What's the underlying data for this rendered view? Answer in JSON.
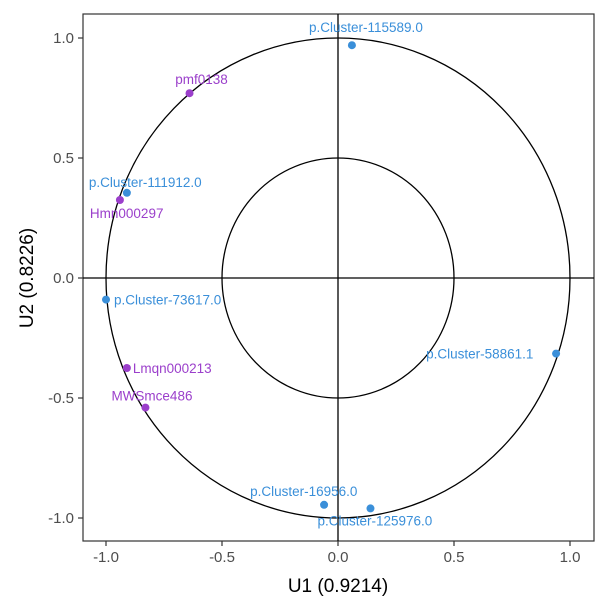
{
  "chart_data": {
    "type": "scatter",
    "title": "",
    "xlabel": "U1 (0.9214)",
    "ylabel": "U2 (0.8226)",
    "xlim": [
      -1.1,
      1.1
    ],
    "ylim": [
      -1.1,
      1.1
    ],
    "x_ticks": [
      "-1.0",
      "-0.5",
      "0.0",
      "0.5",
      "1.0"
    ],
    "y_ticks": [
      "-1.0",
      "-0.5",
      "0.0",
      "0.5",
      "1.0"
    ],
    "grid": false,
    "circles": [
      1.0,
      0.5
    ],
    "colors": {
      "x_group": "#3a8fd9",
      "y_group": "#9b3fcb"
    },
    "points": [
      {
        "label": "p.Cluster-115589.0",
        "x": 0.06,
        "y": 0.97,
        "group": "x_group"
      },
      {
        "label": "pmf0138",
        "x": -0.64,
        "y": 0.77,
        "group": "y_group"
      },
      {
        "label": "p.Cluster-111912.0",
        "x": -0.91,
        "y": 0.355,
        "group": "x_group"
      },
      {
        "label": "Hmn000297",
        "x": -0.94,
        "y": 0.325,
        "group": "y_group"
      },
      {
        "label": "p.Cluster-73617.0",
        "x": -1.0,
        "y": -0.09,
        "group": "x_group"
      },
      {
        "label": "p.Cluster-58861.1",
        "x": 0.94,
        "y": -0.315,
        "group": "x_group"
      },
      {
        "label": "Lmqn000213",
        "x": -0.91,
        "y": -0.375,
        "group": "y_group"
      },
      {
        "label": "MWSmce486",
        "x": -0.83,
        "y": -0.54,
        "group": "y_group"
      },
      {
        "label": "p.Cluster-16956.0",
        "x": -0.06,
        "y": -0.945,
        "group": "x_group"
      },
      {
        "label": "p.Cluster-125976.0",
        "x": 0.14,
        "y": -0.96,
        "group": "x_group"
      }
    ]
  }
}
